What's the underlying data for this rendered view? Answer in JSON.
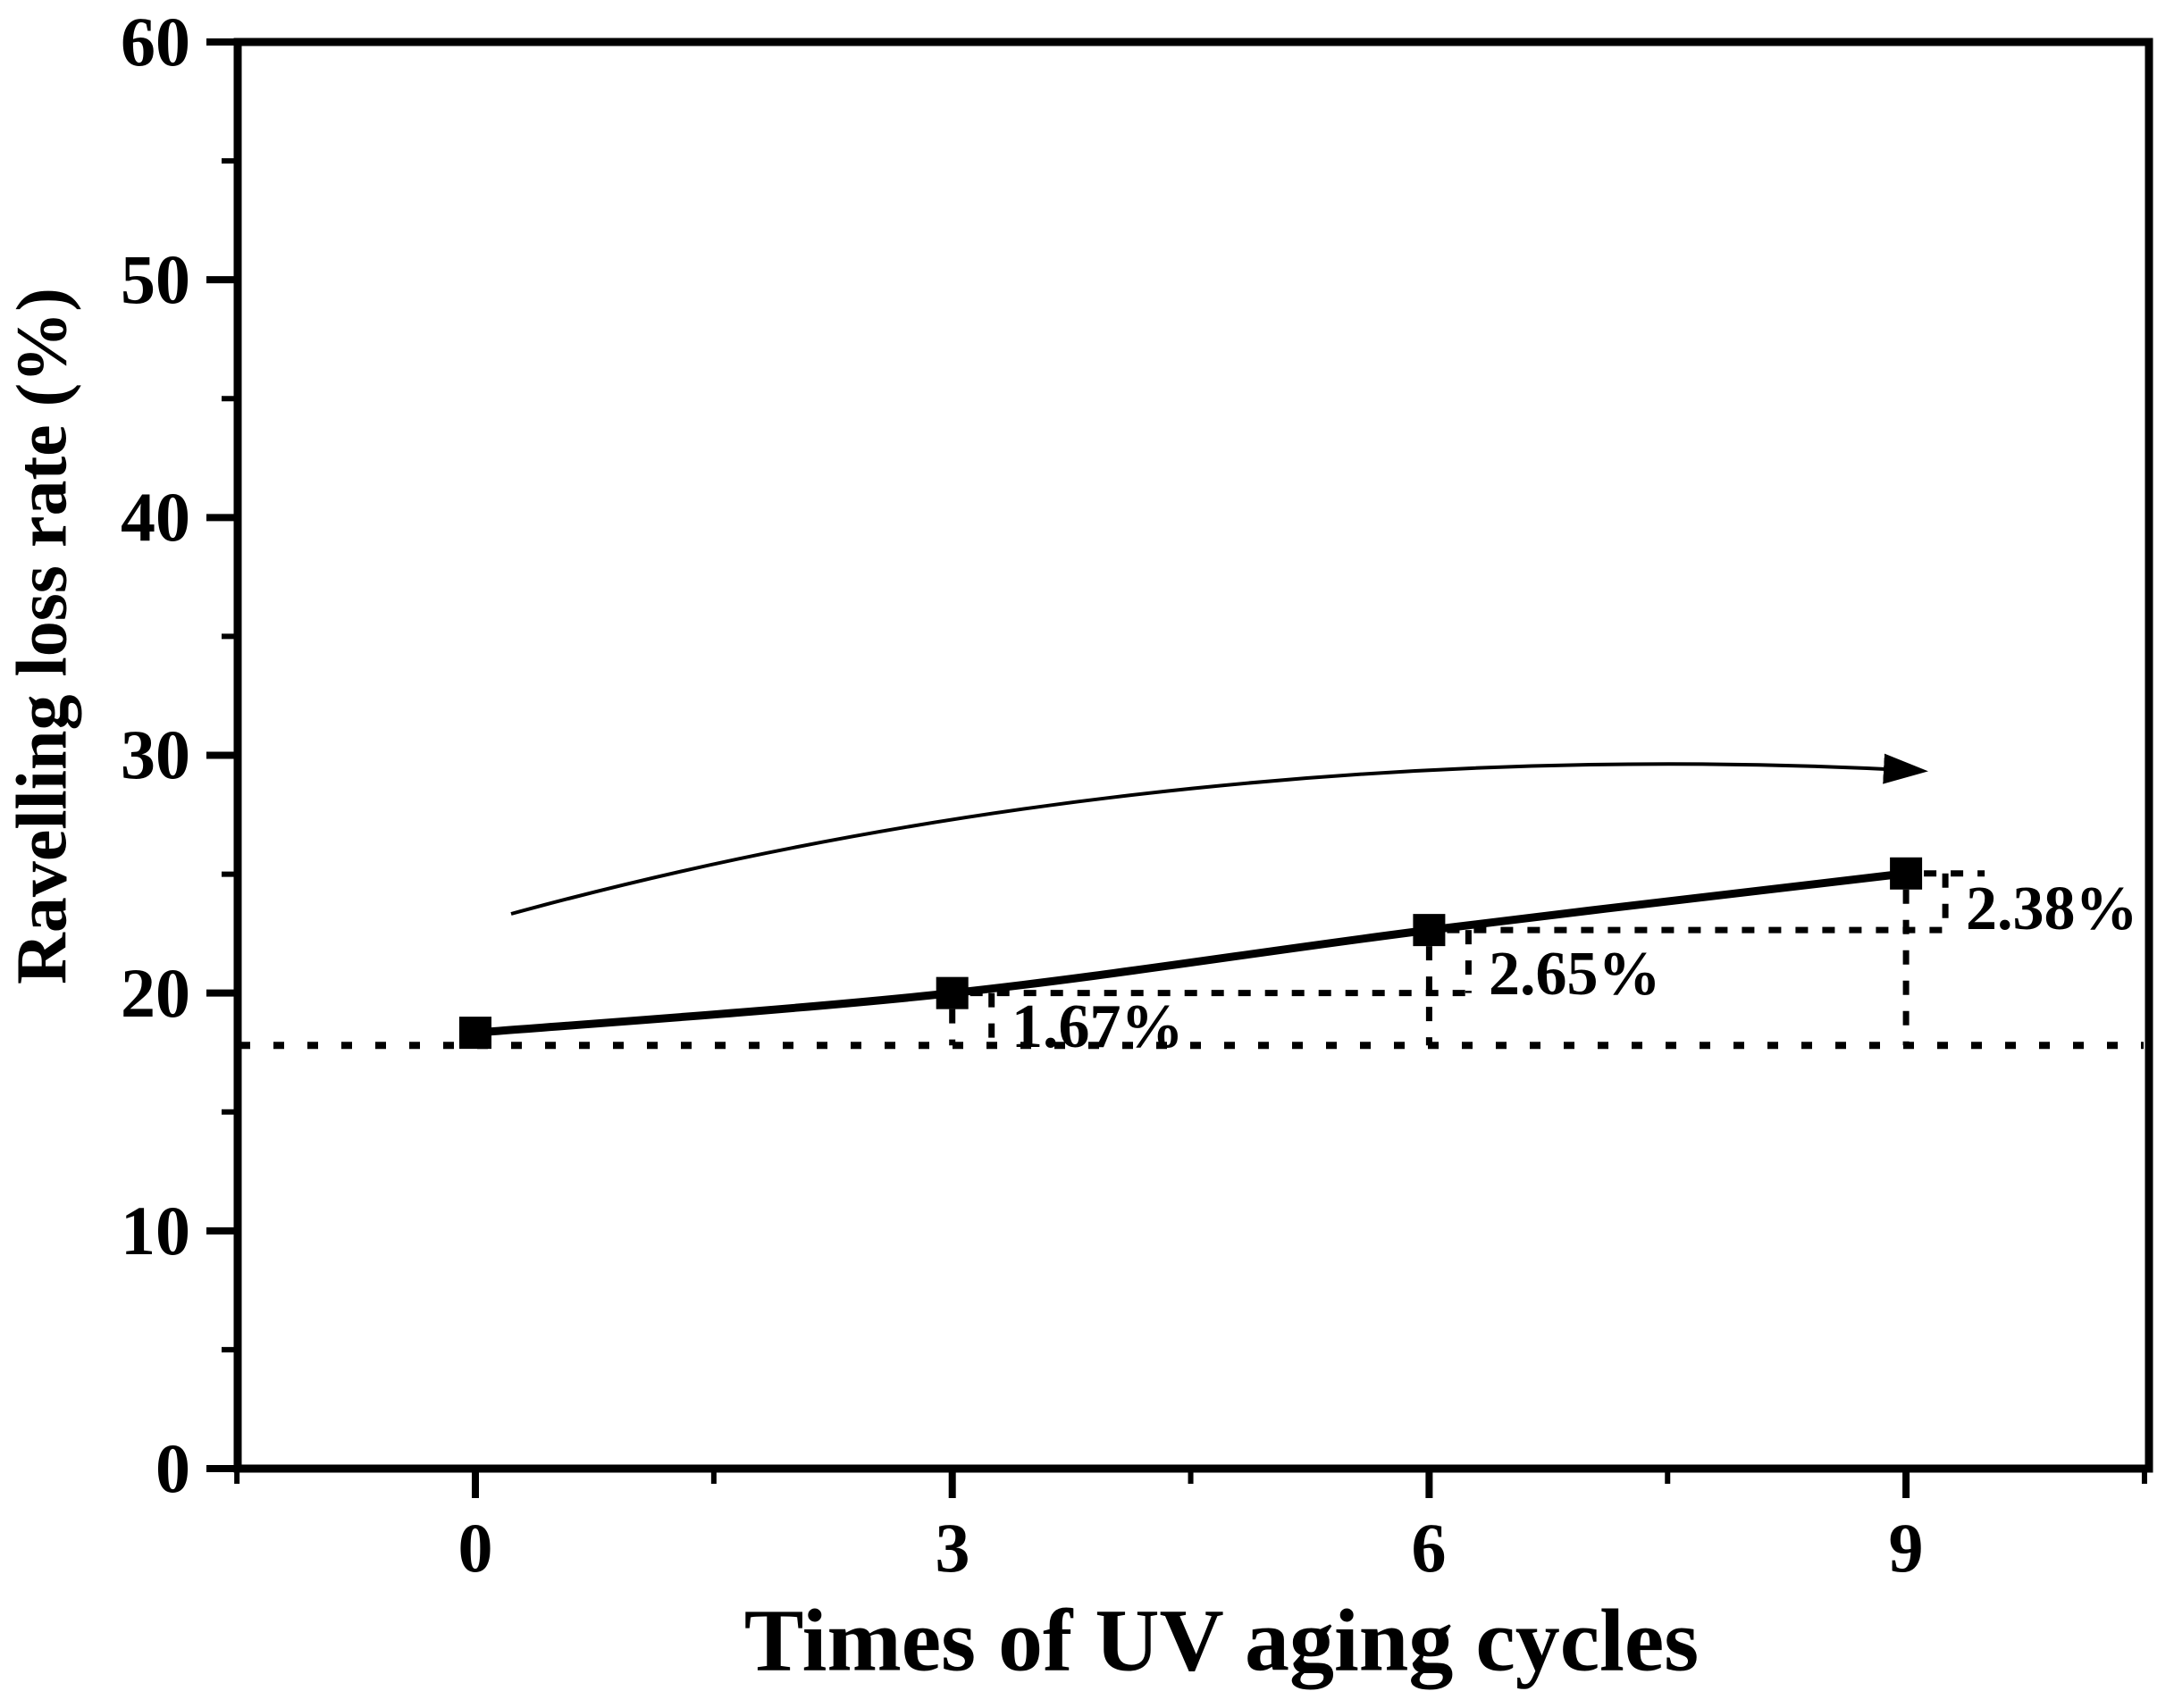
{
  "chart_data": {
    "type": "line",
    "title": "",
    "xlabel": "Times of UV aging cycles",
    "ylabel": "Ravelling loss rate (%)",
    "x": [
      0,
      3,
      6,
      9
    ],
    "series": [
      {
        "name": "Ravelling loss rate",
        "marker": "filled-square",
        "color": "#000000",
        "values": [
          18.33,
          20.0,
          22.65,
          25.03
        ]
      }
    ],
    "step_increase_labels": [
      "1.67%",
      "2.65%",
      "2.38%"
    ],
    "baseline_value": 17.8,
    "xlim": [
      -1.5,
      10.53
    ],
    "ylim": [
      0,
      60
    ],
    "x_ticks": [
      0,
      3,
      6,
      9
    ],
    "y_ticks": [
      0,
      10,
      20,
      30,
      40,
      50,
      60
    ],
    "x_minor_ticks": [
      -1.5,
      1.5,
      4.5,
      7.5,
      10.5
    ],
    "y_minor_ticks": [
      5,
      15,
      25,
      35,
      45,
      55
    ],
    "grid": false,
    "legend": "none",
    "has_trend_arrow": true,
    "line_color": "#000000",
    "background": "#ffffff"
  },
  "axes": {
    "x": {
      "label": "Times of UV aging cycles",
      "tick_labels": [
        "0",
        "3",
        "6",
        "9"
      ]
    },
    "y": {
      "label": "Ravelling loss rate (%)",
      "tick_labels": [
        "0",
        "10",
        "20",
        "30",
        "40",
        "50",
        "60"
      ]
    }
  },
  "annotations": {
    "steps": [
      "1.67%",
      "2.65%",
      "2.38%"
    ]
  }
}
